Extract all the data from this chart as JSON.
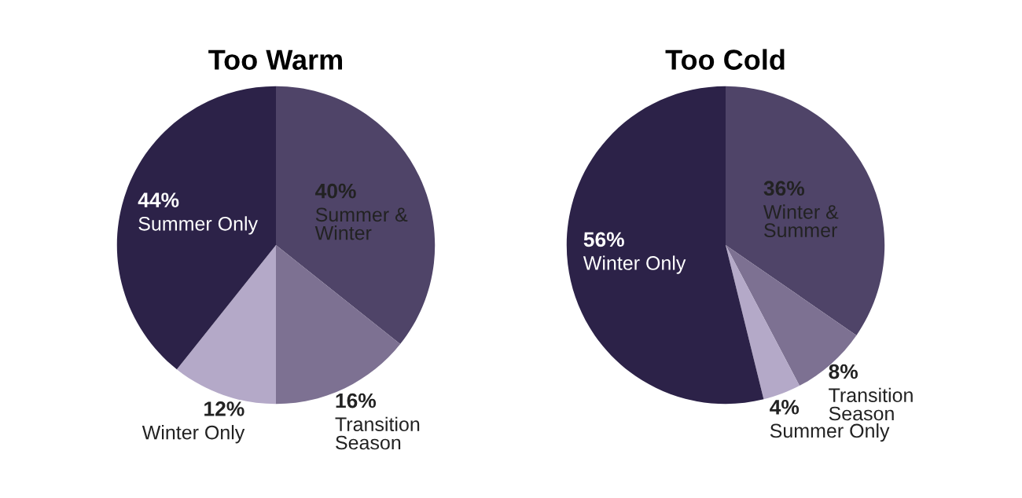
{
  "chart_data": [
    {
      "type": "pie",
      "title": "Too Warm",
      "categories": [
        "Summer &\nWinter",
        "Transition\nSeason",
        "Winter Only",
        "Summer Only"
      ],
      "values": [
        40,
        16,
        12,
        44
      ],
      "value_labels": [
        "40%",
        "16%",
        "12%",
        "44%"
      ],
      "colors": [
        "#4f4468",
        "#7d7192",
        "#b4a9c8",
        "#2c2248"
      ]
    },
    {
      "type": "pie",
      "title": "Too Cold",
      "categories": [
        "Winter &\nSummer",
        "Transition\nSeason",
        "Summer Only",
        "Winter Only"
      ],
      "values": [
        36,
        8,
        4,
        56
      ],
      "value_labels": [
        "36%",
        "8%",
        "4%",
        "56%"
      ],
      "colors": [
        "#4f4468",
        "#7d7192",
        "#b4a9c8",
        "#2c2248"
      ]
    }
  ]
}
